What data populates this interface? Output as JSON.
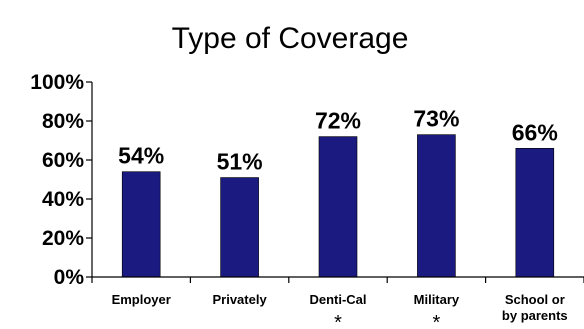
{
  "chart_data": {
    "type": "bar",
    "title": "Type of Coverage",
    "xlabel": "",
    "ylabel": "",
    "categories": [
      "Employer",
      "Privately",
      "Denti-Cal",
      "Military",
      "School or by parents"
    ],
    "category_lines": [
      [
        "Employer"
      ],
      [
        "Privately"
      ],
      [
        "Denti-Cal"
      ],
      [
        "Military"
      ],
      [
        "School or",
        "by parents"
      ]
    ],
    "footnote_marks": [
      "",
      "",
      "*",
      "*",
      ""
    ],
    "values": [
      54,
      51,
      72,
      73,
      66
    ],
    "data_labels": [
      "54%",
      "51%",
      "72%",
      "73%",
      "66%"
    ],
    "ylim": [
      0,
      100
    ],
    "yticks": [
      0,
      20,
      40,
      60,
      80,
      100
    ],
    "ytick_labels": [
      "0%",
      "20%",
      "40%",
      "60%",
      "80%",
      "100%"
    ],
    "grid": false,
    "legend": "none",
    "bar_color": "#1a1a80"
  }
}
